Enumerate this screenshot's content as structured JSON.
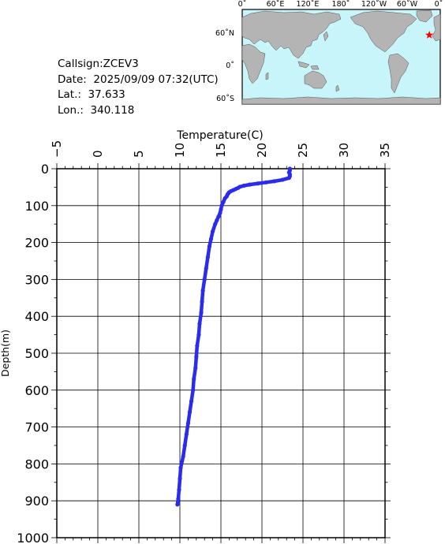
{
  "info": {
    "callsign": "Callsign:ZCEV3",
    "date": "Date:  2025/09/09 07:32(UTC)",
    "lat": "Lat.:  37.633",
    "lon": "Lon.:  340.118"
  },
  "map": {
    "lon_labels": [
      "0˚",
      "60˚E",
      "120˚E",
      "180˚",
      "120˚W",
      "60˚W",
      "0˚"
    ],
    "lat_labels": [
      "60˚N",
      "0˚",
      "60˚S"
    ],
    "ocean_color": "#c8f5fa",
    "land_color": "#b4b4b4",
    "marker_color": "#ff0000",
    "marker_icon": "star-icon",
    "marker_lon": 340.118,
    "marker_lat": 37.633
  },
  "chart_data": {
    "type": "line",
    "xlabel": "Temperature(C)",
    "ylabel": "Depth(m)",
    "xlim": [
      -5,
      35
    ],
    "ylim": [
      0,
      1000
    ],
    "y_inverted": true,
    "x_axis_position": "top",
    "x_ticks": [
      -5,
      0,
      5,
      10,
      15,
      20,
      25,
      30,
      35
    ],
    "y_ticks": [
      0,
      100,
      200,
      300,
      400,
      500,
      600,
      700,
      800,
      900,
      1000
    ],
    "grid": true,
    "series_color": "#2a2af0",
    "series": [
      {
        "x": [
          23.4,
          23.4,
          23.3,
          23.4,
          23.4,
          23.3,
          22.5,
          21.5,
          20.5,
          19.5,
          18.5,
          17.8,
          17.3,
          17.1,
          16.8,
          16.5,
          16.2,
          16.0,
          15.9,
          15.8,
          15.7,
          15.5,
          15.3,
          15.1,
          15.0,
          14.9,
          14.7,
          14.5,
          14.3,
          14.0,
          13.8,
          13.6,
          13.4,
          13.2,
          13.0,
          12.8,
          12.7,
          12.6,
          12.4,
          12.3,
          12.1,
          12.0,
          11.9,
          11.7,
          11.6,
          11.4,
          11.2,
          11.0,
          10.8,
          10.6,
          10.4,
          10.1,
          10.0,
          9.9,
          9.8,
          9.7
        ],
        "y": [
          0,
          5,
          10,
          15,
          20,
          25,
          30,
          34,
          37,
          40,
          43,
          46,
          49,
          52,
          55,
          58,
          61,
          64,
          67,
          70,
          75,
          80,
          90,
          100,
          110,
          120,
          130,
          140,
          150,
          170,
          190,
          210,
          240,
          270,
          300,
          330,
          360,
          390,
          420,
          450,
          480,
          510,
          540,
          570,
          600,
          630,
          660,
          690,
          720,
          750,
          780,
          810,
          840,
          870,
          895,
          910
        ]
      }
    ]
  }
}
